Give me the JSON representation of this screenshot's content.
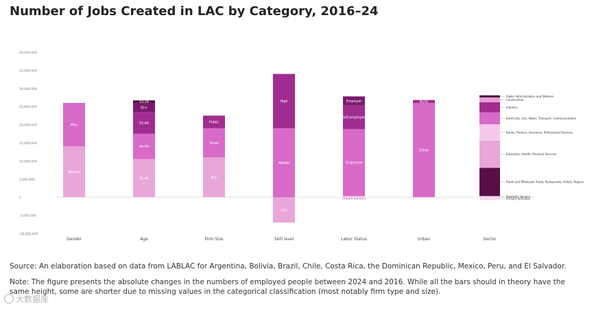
{
  "title": "Number of Jobs Created in LAC by Category, 2016–24",
  "source": "Source: An elaboration based on data from LABLAC for Argentina, Bolivia, Brazil, Chile, Costa Rica, the Dominican Republic, Mexico, Peru, and El Salvador.",
  "note": "Note: The figure presents the absolute changes in the numbers of employed people between 2024 and 2016. While all the bars should in theory have the same height, some are shorter due to missing values in the categorical classification (most notably firm type and size).",
  "watermark": "大数据库",
  "chart_data": {
    "type": "bar",
    "stacked": true,
    "title": "Number of Jobs Created in LAC by Category, 2016–24",
    "xlabel": "",
    "ylabel": "",
    "ylim": [
      -10000000,
      40000000
    ],
    "yticks": [
      {
        "value": 40000000,
        "label": "40,000,000"
      },
      {
        "value": 35000000,
        "label": "35,000,000"
      },
      {
        "value": 30000000,
        "label": "30,000,000"
      },
      {
        "value": 25000000,
        "label": "25,000,000"
      },
      {
        "value": 20000000,
        "label": "20,000,000"
      },
      {
        "value": 15000000,
        "label": "15,000,000"
      },
      {
        "value": 10000000,
        "label": "10,000,000"
      },
      {
        "value": 5000000,
        "label": "5,000,000"
      },
      {
        "value": 0,
        "label": "0"
      },
      {
        "value": -5000000,
        "label": "-5,000,000"
      },
      {
        "value": -10000000,
        "label": "-10,000,000"
      }
    ],
    "categories": [
      "Gender",
      "Age",
      "Firm Size",
      "Skill level",
      "Labor Status",
      "Urban",
      "Sector"
    ],
    "bars": [
      {
        "category": "Gender",
        "segments": [
          {
            "label": "Women",
            "value": 14000000,
            "color": "#e8a6d9"
          },
          {
            "label": "Men",
            "value": 12000000,
            "color": "#d86ac8"
          }
        ]
      },
      {
        "category": "Age",
        "segments": [
          {
            "label": "25-44",
            "value": 10500000,
            "color": "#e8a6d9"
          },
          {
            "label": "45-54",
            "value": 7000000,
            "color": "#d86ac8"
          },
          {
            "label": "55-64",
            "value": 6000000,
            "color": "#a12c8f"
          },
          {
            "label": "65+",
            "value": 2500000,
            "color": "#7c1a6d"
          },
          {
            "label": "15-24",
            "value": 700000,
            "color": "#561047"
          }
        ]
      },
      {
        "category": "Firm Size",
        "segments": [
          {
            "label": "Big",
            "value": 11000000,
            "color": "#e8a6d9"
          },
          {
            "label": "Small",
            "value": 8000000,
            "color": "#d86ac8"
          },
          {
            "label": "Public",
            "value": 3500000,
            "color": "#a12c8f"
          }
        ]
      },
      {
        "category": "Skill level",
        "segments": [
          {
            "label": "Low",
            "value": -7000000,
            "color": "#e8a6d9"
          },
          {
            "label": "Middle",
            "value": 19000000,
            "color": "#d86ac8"
          },
          {
            "label": "High",
            "value": 15000000,
            "color": "#a12c8f"
          }
        ]
      },
      {
        "category": "Labor Status",
        "segments": [
          {
            "label": "Unpaid workers",
            "value": 300000,
            "color": "#f3cbea"
          },
          {
            "label": "Employee",
            "value": 18500000,
            "color": "#d86ac8"
          },
          {
            "label": "Self-employed",
            "value": 6500000,
            "color": "#a12c8f"
          },
          {
            "label": "Employer",
            "value": 2500000,
            "color": "#7c1a6d"
          }
        ]
      },
      {
        "category": "Urban",
        "segments": [
          {
            "label": "Urban",
            "value": 26000000,
            "color": "#d86ac8"
          },
          {
            "label": "Rural",
            "value": 800000,
            "color": "#a12c8f"
          }
        ]
      },
      {
        "category": "Sector",
        "segments": [
          {
            "label": "Primary Activities",
            "value": -800000,
            "color": "#f6d7ee"
          },
          {
            "label": "Domestic Service",
            "value": 300000,
            "color": "#f6d7ee"
          },
          {
            "label": "Retail and Wholesale Trade, Restaurants, Hotels, Repairs",
            "value": 7800000,
            "color": "#561047"
          },
          {
            "label": "Education, Health, Personal Services",
            "value": 7500000,
            "color": "#e8a6d9"
          },
          {
            "label": "Banks, Finance, Insurance, Professional Services",
            "value": 4500000,
            "color": "#f6c8ee"
          },
          {
            "label": "Electricity, Gas, Water, Transport, Communications",
            "value": 3300000,
            "color": "#d86ac8"
          },
          {
            "label": "Industry",
            "value": 2800000,
            "color": "#a12c8f"
          },
          {
            "label": "Construction",
            "value": 1300000,
            "color": "#e2a0d6"
          },
          {
            "label": "Public Administration and Defense",
            "value": 600000,
            "color": "#561047"
          }
        ]
      }
    ]
  }
}
